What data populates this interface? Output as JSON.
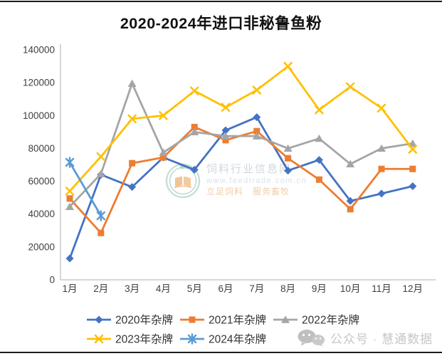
{
  "chart_data": {
    "type": "line",
    "title": "2020-2024年进口非秘鲁鱼粉",
    "categories": [
      "1月",
      "2月",
      "3月",
      "4月",
      "5月",
      "6月",
      "7月",
      "8月",
      "9月",
      "10月",
      "11月",
      "12月"
    ],
    "series": [
      {
        "name": "2020年杂牌",
        "color": "#4472C4",
        "marker": "diamond",
        "values": [
          13000,
          64000,
          56500,
          74500,
          67000,
          91000,
          99000,
          66500,
          73000,
          48000,
          52500,
          57000
        ]
      },
      {
        "name": "2021年杂牌",
        "color": "#ED7D31",
        "marker": "square",
        "values": [
          49500,
          28500,
          71000,
          74500,
          93000,
          85000,
          90500,
          74000,
          61000,
          43000,
          67500,
          67500
        ]
      },
      {
        "name": "2022年杂牌",
        "color": "#A5A5A5",
        "marker": "triangle",
        "values": [
          44500,
          64500,
          119500,
          77500,
          90000,
          87500,
          87500,
          80000,
          86000,
          70500,
          80000,
          83000
        ]
      },
      {
        "name": "2023年杂牌",
        "color": "#FFC000",
        "marker": "x",
        "values": [
          54000,
          75000,
          98000,
          100000,
          115000,
          105000,
          115500,
          130000,
          103500,
          117500,
          104500,
          79500
        ]
      },
      {
        "name": "2024年杂牌",
        "color": "#5B9BD5",
        "marker": "star",
        "values": [
          71500,
          39000,
          null,
          null,
          null,
          null,
          null,
          null,
          null,
          null,
          null,
          null
        ]
      }
    ],
    "xlabel": "",
    "ylabel": "",
    "ylim": [
      0,
      140000
    ],
    "y_tick_step": 20000,
    "grid": false,
    "legend_position": "bottom",
    "axis_color": "#BFBFBF",
    "tick_label_color": "#404040",
    "legend_text_color": "#333333"
  },
  "watermark": {
    "site_name": "饲料行业信息网",
    "site_url": "www.feedtrade.com.cn",
    "slogan": "立足饲料　服务畜牧"
  },
  "badge": {
    "text": "公众号 · 慧通数据"
  }
}
